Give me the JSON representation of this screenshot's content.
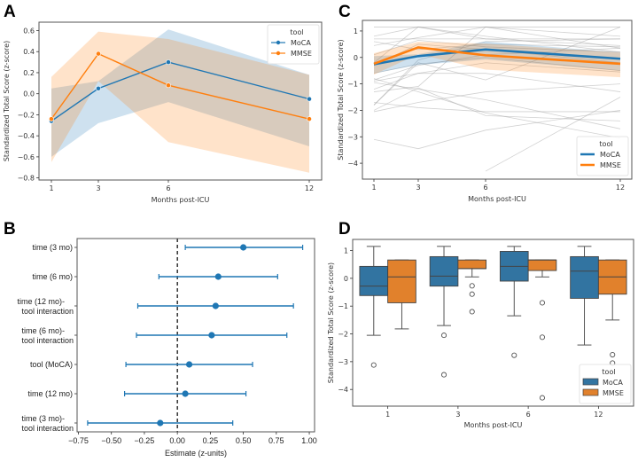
{
  "figure": {
    "panels": [
      "A",
      "B",
      "C",
      "D"
    ]
  },
  "chart_data": [
    {
      "id": "A",
      "type": "line",
      "panel_letter": "A",
      "title": "",
      "xlabel": "Months post-ICU",
      "ylabel": "Standardized Total Score (z-score)",
      "x": [
        1,
        3,
        6,
        12
      ],
      "xticks": [
        "1",
        "3",
        "6",
        "12"
      ],
      "yticks": [
        "0.6",
        "0.4",
        "0.2",
        "0.0",
        "−0.2",
        "−0.4",
        "−0.6",
        "−0.8"
      ],
      "ytick_values": [
        0.6,
        0.4,
        0.2,
        0.0,
        -0.2,
        -0.4,
        -0.6,
        -0.8
      ],
      "ylim": [
        -0.82,
        0.68
      ],
      "legend": {
        "title": "tool",
        "placement": "top-right"
      },
      "series": [
        {
          "name": "MoCA",
          "color": "#1f77b4",
          "values": [
            -0.26,
            0.05,
            0.3,
            -0.05
          ],
          "ci_low": [
            -0.6,
            -0.28,
            -0.08,
            -0.5
          ],
          "ci_high": [
            0.05,
            0.12,
            0.61,
            0.18
          ]
        },
        {
          "name": "MMSE",
          "color": "#ff7f0e",
          "values": [
            -0.24,
            0.38,
            0.08,
            -0.24
          ],
          "ci_low": [
            -0.65,
            0.12,
            -0.46,
            -0.75
          ],
          "ci_high": [
            0.16,
            0.59,
            0.52,
            0.18
          ]
        }
      ]
    },
    {
      "id": "B",
      "type": "scatter",
      "subtype": "forest",
      "panel_letter": "B",
      "xlabel": "Estimate (z-units)",
      "ylabel": "",
      "xlim": [
        -0.76,
        1.04
      ],
      "xticks": [
        "−0.75",
        "−0.50",
        "−0.25",
        "0.00",
        "0.25",
        "0.50",
        "0.75",
        "1.00"
      ],
      "xtick_values": [
        -0.75,
        -0.5,
        -0.25,
        0.0,
        0.25,
        0.5,
        0.75,
        1.0
      ],
      "reference_line": 0,
      "color": "#1f77b4",
      "rows": [
        {
          "label": [
            "time (3 mo)"
          ],
          "estimate": 0.5,
          "low": 0.06,
          "high": 0.95
        },
        {
          "label": [
            "time (6 mo)"
          ],
          "estimate": 0.31,
          "low": -0.14,
          "high": 0.76
        },
        {
          "label": [
            "time (12 mo)-",
            "tool interaction"
          ],
          "estimate": 0.29,
          "low": -0.3,
          "high": 0.88
        },
        {
          "label": [
            "time (6 mo)-",
            "tool interaction"
          ],
          "estimate": 0.26,
          "low": -0.31,
          "high": 0.83
        },
        {
          "label": [
            "tool (MoCA)"
          ],
          "estimate": 0.09,
          "low": -0.39,
          "high": 0.57
        },
        {
          "label": [
            "time (12 mo)"
          ],
          "estimate": 0.06,
          "low": -0.4,
          "high": 0.52
        },
        {
          "label": [
            "time (3 mo)-",
            "tool interaction"
          ],
          "estimate": -0.13,
          "low": -0.68,
          "high": 0.42
        }
      ]
    },
    {
      "id": "C",
      "type": "line",
      "panel_letter": "C",
      "xlabel": "Months post-ICU",
      "ylabel": "Standardized Total Score (z-score)",
      "x": [
        1,
        3,
        6,
        12
      ],
      "xticks": [
        "1",
        "3",
        "6",
        "12"
      ],
      "yticks": [
        "1",
        "0",
        "−1",
        "−2",
        "−3",
        "−4"
      ],
      "ytick_values": [
        1,
        0,
        -1,
        -2,
        -3,
        -4
      ],
      "ylim": [
        -4.6,
        1.4
      ],
      "legend": {
        "title": "tool",
        "placement": "bottom-right"
      },
      "series": [
        {
          "name": "MoCA",
          "color": "#1f77b4",
          "values": [
            -0.26,
            0.05,
            0.3,
            -0.05
          ],
          "ci_low": [
            -0.6,
            -0.28,
            -0.08,
            -0.5
          ],
          "ci_high": [
            0.05,
            0.12,
            0.61,
            0.18
          ]
        },
        {
          "name": "MMSE",
          "color": "#ff7f0e",
          "values": [
            -0.24,
            0.38,
            0.08,
            -0.24
          ],
          "ci_low": [
            -0.65,
            0.12,
            -0.46,
            -0.75
          ],
          "ci_high": [
            0.16,
            0.59,
            0.52,
            0.18
          ]
        }
      ],
      "individual_trajectories": [
        [
          1.15,
          1.15,
          1.15,
          1.15
        ],
        [
          0.7,
          0.7,
          0.7,
          0.7
        ],
        [
          0.8,
          1.15,
          0.7,
          0.45
        ],
        [
          0.45,
          0.75,
          1.15,
          0.35
        ],
        [
          0.6,
          0.3,
          0.5,
          0.4
        ],
        [
          0.1,
          0.65,
          0.4,
          0.2
        ],
        [
          -0.3,
          0.5,
          0.3,
          -0.2
        ],
        [
          -0.6,
          -0.25,
          0.0,
          -0.5
        ],
        [
          -0.9,
          -0.6,
          -0.2,
          -0.55
        ],
        [
          -0.85,
          -0.3,
          0.1,
          0.35
        ],
        [
          -1.3,
          -1.1,
          1.15,
          0.8
        ],
        [
          -1.8,
          -0.1,
          0.6,
          0.7
        ],
        [
          -2.05,
          -1.7,
          -1.3,
          -1.0
        ],
        [
          -1.8,
          -0.2,
          -0.85,
          1.15
        ],
        [
          -2.0,
          -1.15,
          -2.2,
          -2.4
        ],
        [
          -0.95,
          -1.2,
          -1.6,
          -2.7
        ],
        [
          -0.8,
          -1.3,
          -2.1,
          -3.05
        ],
        [
          -1.7,
          -1.9,
          -2.05,
          -2.05
        ],
        [
          -3.1,
          -3.45,
          -2.75,
          -2.0
        ],
        [
          null,
          null,
          -4.3,
          -1.5
        ],
        [
          -1.2,
          -0.6,
          -0.6,
          -1.3
        ],
        [
          -0.2,
          1.15,
          0.8,
          0.2
        ]
      ]
    },
    {
      "id": "D",
      "type": "box",
      "panel_letter": "D",
      "xlabel": "Months post-ICU",
      "ylabel": "Standardized Total Score (z-score)",
      "categories": [
        "1",
        "3",
        "6",
        "12"
      ],
      "yticks": [
        "1",
        "0",
        "−1",
        "−2",
        "−3",
        "−4"
      ],
      "ytick_values": [
        1,
        0,
        -1,
        -2,
        -3,
        -4
      ],
      "ylim": [
        -4.6,
        1.4
      ],
      "legend": {
        "title": "tool",
        "placement": "bottom-right"
      },
      "series": [
        {
          "name": "MoCA",
          "color": "#1f77b4",
          "fill": "#3274a1",
          "boxes": [
            {
              "whisker_low": -2.05,
              "q1": -0.62,
              "median": -0.28,
              "q3": 0.43,
              "whisker_high": 1.15,
              "outliers": [
                -3.12
              ]
            },
            {
              "whisker_low": -1.7,
              "q1": -0.28,
              "median": 0.08,
              "q3": 0.78,
              "whisker_high": 1.15,
              "outliers": [
                -2.05,
                -3.47
              ]
            },
            {
              "whisker_low": -1.35,
              "q1": -0.1,
              "median": 0.43,
              "q3": 0.97,
              "whisker_high": 1.15,
              "outliers": [
                -2.77
              ]
            },
            {
              "whisker_low": -2.4,
              "q1": -0.72,
              "median": 0.26,
              "q3": 0.78,
              "whisker_high": 1.15,
              "outliers": []
            }
          ]
        },
        {
          "name": "MMSE",
          "color": "#ff7f0e",
          "fill": "#e1812c",
          "boxes": [
            {
              "whisker_low": -1.82,
              "q1": -0.88,
              "median": 0.05,
              "q3": 0.66,
              "whisker_high": 0.66,
              "outliers": []
            },
            {
              "whisker_low": 0.05,
              "q1": 0.35,
              "median": 0.35,
              "q3": 0.66,
              "whisker_high": 0.66,
              "outliers": [
                -0.27,
                -0.57,
                -1.2
              ]
            },
            {
              "whisker_low": 0.05,
              "q1": 0.28,
              "median": 0.66,
              "q3": 0.66,
              "whisker_high": 0.66,
              "outliers": [
                -0.88,
                -2.12,
                -4.3
              ]
            },
            {
              "whisker_low": -1.5,
              "q1": -0.57,
              "median": 0.05,
              "q3": 0.66,
              "whisker_high": 0.66,
              "outliers": [
                -2.75,
                -3.05
              ]
            }
          ]
        }
      ]
    }
  ]
}
